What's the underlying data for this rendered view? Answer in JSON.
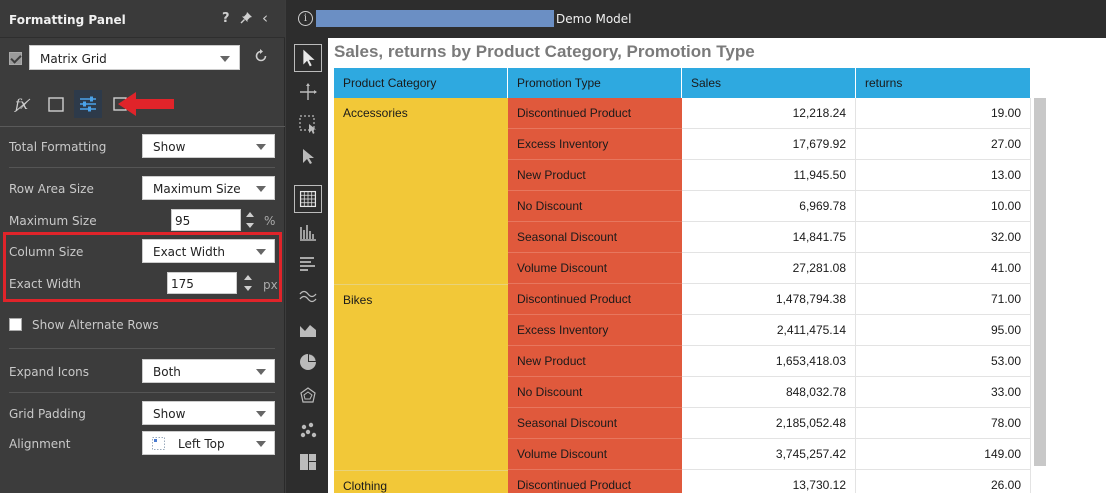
{
  "panel": {
    "title": "Formatting Panel",
    "visualization": "Matrix Grid",
    "rows": {
      "total_formatting": {
        "label": "Total Formatting",
        "value": "Show"
      },
      "row_area_size": {
        "label": "Row Area Size",
        "value": "Maximum Size"
      },
      "maximum_size": {
        "label": "Maximum Size",
        "value": "95",
        "unit": "%"
      },
      "column_size": {
        "label": "Column Size",
        "value": "Exact Width"
      },
      "exact_width": {
        "label": "Exact Width",
        "value": "175",
        "unit": "px"
      },
      "show_alternate_rows": {
        "label": "Show Alternate Rows",
        "checked": false
      },
      "expand_icons": {
        "label": "Expand Icons",
        "value": "Both"
      },
      "grid_padding": {
        "label": "Grid Padding",
        "value": "Show"
      },
      "alignment": {
        "label": "Alignment",
        "value": "Left Top"
      }
    }
  },
  "topbar": {
    "model_name": "Demo Model"
  },
  "report": {
    "title": "Sales, returns by Product Category, Promotion Type",
    "headers": [
      "Product Category",
      "Promotion Type",
      "Sales",
      "returns"
    ],
    "groups": [
      {
        "category": "Accessories",
        "rows": [
          {
            "promotion": "Discontinued Product",
            "sales": "12,218.24",
            "returns": "19.00"
          },
          {
            "promotion": "Excess Inventory",
            "sales": "17,679.92",
            "returns": "27.00"
          },
          {
            "promotion": "New Product",
            "sales": "11,945.50",
            "returns": "13.00"
          },
          {
            "promotion": "No Discount",
            "sales": "6,969.78",
            "returns": "10.00"
          },
          {
            "promotion": "Seasonal Discount",
            "sales": "14,841.75",
            "returns": "32.00"
          },
          {
            "promotion": "Volume Discount",
            "sales": "27,281.08",
            "returns": "41.00"
          }
        ]
      },
      {
        "category": "Bikes",
        "rows": [
          {
            "promotion": "Discontinued Product",
            "sales": "1,478,794.38",
            "returns": "71.00"
          },
          {
            "promotion": "Excess Inventory",
            "sales": "2,411,475.14",
            "returns": "95.00"
          },
          {
            "promotion": "New Product",
            "sales": "1,653,418.03",
            "returns": "53.00"
          },
          {
            "promotion": "No Discount",
            "sales": "848,032.78",
            "returns": "33.00"
          },
          {
            "promotion": "Seasonal Discount",
            "sales": "2,185,052.48",
            "returns": "78.00"
          },
          {
            "promotion": "Volume Discount",
            "sales": "3,745,257.42",
            "returns": "149.00"
          }
        ]
      },
      {
        "category": "Clothing",
        "rows": [
          {
            "promotion": "Discontinued Product",
            "sales": "13,730.12",
            "returns": "26.00"
          }
        ]
      }
    ]
  },
  "colors": {
    "header": "#2ea9e0",
    "category": "#f2c838",
    "promotion": "#e0593c",
    "highlight": "#e0242a"
  }
}
